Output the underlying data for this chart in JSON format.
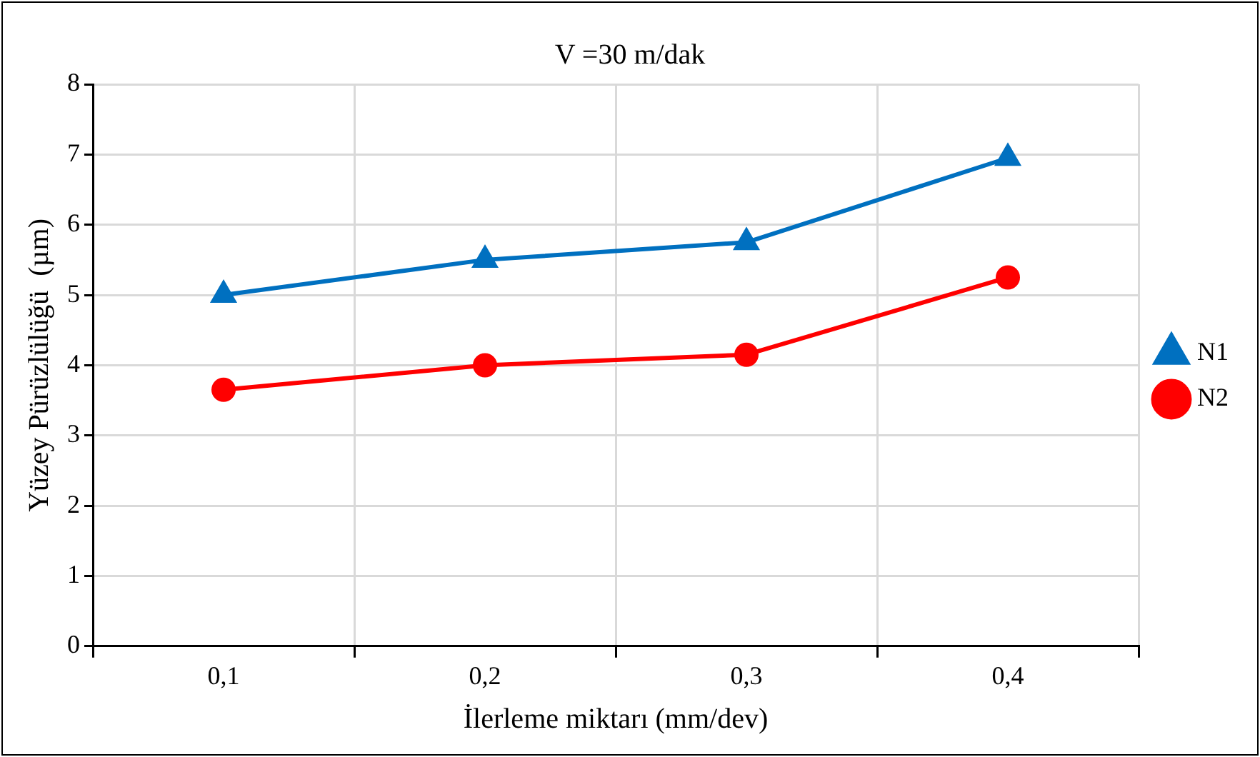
{
  "chart_data": {
    "type": "line",
    "title": "V =30 m/dak",
    "xlabel": "İlerleme miktarı (mm/dev)",
    "ylabel": "Yüzey Pürüzlülüğü  (µm)",
    "categories": [
      "0,1",
      "0,2",
      "0,3",
      "0,4"
    ],
    "series": [
      {
        "name": "N1",
        "color": "#0070c0",
        "marker": "triangle",
        "values": [
          5.0,
          5.5,
          5.75,
          6.95
        ]
      },
      {
        "name": "N2",
        "color": "#ff0000",
        "marker": "circle",
        "values": [
          3.65,
          4.0,
          4.15,
          5.25
        ]
      }
    ],
    "ylim": [
      0,
      8
    ],
    "yticks": [
      0,
      1,
      2,
      3,
      4,
      5,
      6,
      7,
      8
    ],
    "grid": true,
    "legend": "right",
    "line_style": "solid"
  }
}
